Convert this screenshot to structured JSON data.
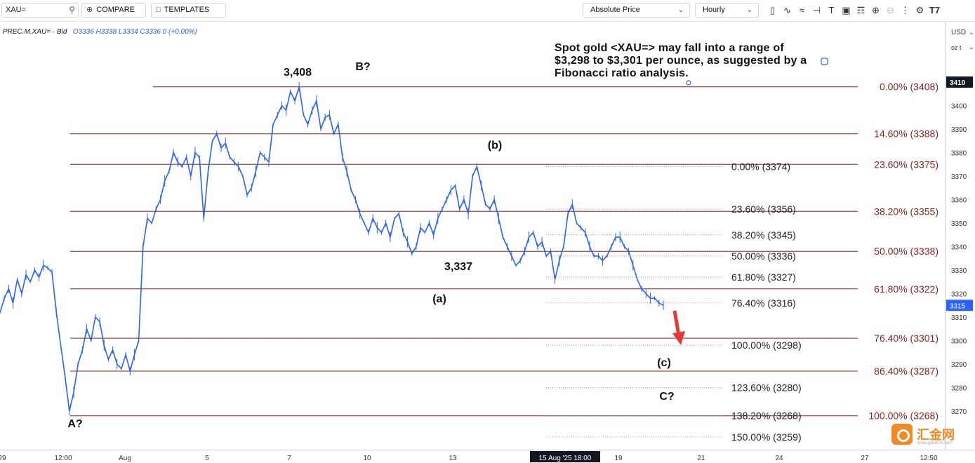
{
  "toolbar": {
    "symbol": "XAU=",
    "compare_label": "COMPARE",
    "templates_label": "TEMPLATES",
    "price_mode": "Absolute Price",
    "interval": "Hourly",
    "tool_icons": [
      "candles-icon",
      "indicators-icon",
      "wave-icon",
      "crosshair-icon",
      "text-icon",
      "shapes-icon",
      "pattern-icon",
      "zoom-in-icon",
      "zoom-out-icon",
      "more-icon",
      "settings-icon",
      "logo-icon"
    ]
  },
  "legend": {
    "name": "PREC.M.XAU= · Bid",
    "o": "O3336",
    "h": "H3338",
    "l": "L3334",
    "c": "C3336",
    "chg": "0 (+0.00%)"
  },
  "axis": {
    "currency": "USD",
    "unit": "oz t",
    "current_price": "3315",
    "top_label": "3410"
  },
  "note": "Spot gold <XAU=> may fall into a range of $3,298 to $3,301 per ounce, as suggested by a Fibonacci ratio analysis.",
  "watermark": {
    "text": "汇金网",
    "url": "www.gold678.com"
  },
  "chart_data": {
    "type": "line",
    "title": "",
    "ylim": [
      3262,
      3418
    ],
    "y_ticks": [
      3270,
      3280,
      3290,
      3300,
      3310,
      3320,
      3330,
      3340,
      3350,
      3360,
      3370,
      3380,
      3390,
      3400
    ],
    "x_ticks": [
      "29",
      "12:00",
      "Aug",
      "5",
      "7",
      "10",
      "13",
      "15 Aug '25  18:00",
      "19",
      "21",
      "24",
      "27",
      "12:50"
    ],
    "series": [
      {
        "values": [
          3312,
          3318,
          3322,
          3316,
          3326,
          3320,
          3328,
          3325,
          3330,
          3327,
          3332,
          3331,
          3329,
          3312,
          3298,
          3285,
          3270,
          3278,
          3290,
          3296,
          3305,
          3300,
          3310,
          3308,
          3298,
          3292,
          3296,
          3290,
          3288,
          3294,
          3287,
          3294,
          3300,
          3340,
          3352,
          3350,
          3356,
          3360,
          3368,
          3372,
          3380,
          3376,
          3374,
          3378,
          3370,
          3380,
          3378,
          3352,
          3372,
          3385,
          3388,
          3382,
          3384,
          3378,
          3376,
          3374,
          3370,
          3362,
          3365,
          3372,
          3380,
          3378,
          3376,
          3392,
          3396,
          3400,
          3398,
          3406,
          3402,
          3408,
          3396,
          3392,
          3398,
          3402,
          3390,
          3395,
          3396,
          3388,
          3392,
          3378,
          3372,
          3364,
          3360,
          3354,
          3350,
          3346,
          3352,
          3348,
          3346,
          3350,
          3344,
          3352,
          3354,
          3346,
          3342,
          3337,
          3340,
          3348,
          3346,
          3350,
          3345,
          3352,
          3356,
          3360,
          3364,
          3366,
          3356,
          3360,
          3354,
          3370,
          3374,
          3366,
          3358,
          3356,
          3360,
          3352,
          3344,
          3340,
          3336,
          3332,
          3334,
          3338,
          3344,
          3346,
          3340,
          3342,
          3336,
          3338,
          3326,
          3334,
          3340,
          3354,
          3358,
          3350,
          3348,
          3346,
          3340,
          3336,
          3336,
          3334,
          3336,
          3340,
          3344,
          3344,
          3340,
          3338,
          3332,
          3326,
          3322,
          3320,
          3318,
          3318,
          3316,
          3315
        ]
      }
    ],
    "fib_major": {
      "labels": [
        "0.00% (3408)",
        "14.60% (3388)",
        "23.60% (3375)",
        "38.20% (3355)",
        "50.00% (3338)",
        "61.80% (3322)",
        "76.40% (3301)",
        "86.40% (3287)",
        "100.00% (3268)"
      ],
      "levels": [
        3408,
        3388,
        3375,
        3355,
        3338,
        3322,
        3301,
        3287,
        3268
      ],
      "color": "#8b1f1f"
    },
    "fib_minor": {
      "labels": [
        "0.00% (3374)",
        "23.60% (3356)",
        "38.20% (3345)",
        "50.00% (3336)",
        "61.80% (3327)",
        "76.40% (3316)",
        "100.00% (3298)",
        "123.60% (3280)",
        "138.20% (3268)",
        "150.00% (3259)"
      ],
      "levels": [
        3374,
        3356,
        3345,
        3336,
        3327,
        3316,
        3298,
        3280,
        3268,
        3259
      ],
      "color": "#9e9e9e"
    },
    "annotations": [
      "3,408",
      "B?",
      "(b)",
      "3,337",
      "(a)",
      "(c)",
      "C?",
      "A?"
    ],
    "line_color": "#2962ff",
    "arrow_color": "#e53935"
  }
}
